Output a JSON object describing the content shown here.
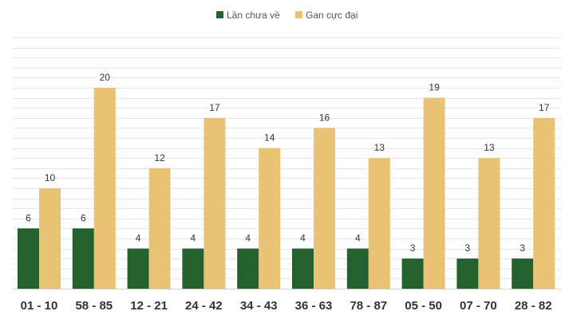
{
  "chart_data": {
    "type": "bar",
    "title": "",
    "xlabel": "",
    "ylabel": "",
    "categories": [
      "01 - 10",
      "58 - 85",
      "12 - 21",
      "24 - 42",
      "34 - 43",
      "36 - 63",
      "78 - 87",
      "05 - 50",
      "07 - 70",
      "28 - 82"
    ],
    "series": [
      {
        "name": "Lần chưa về",
        "color": "#24612f",
        "values": [
          6,
          6,
          4,
          4,
          4,
          4,
          4,
          3,
          3,
          3
        ]
      },
      {
        "name": "Gan cực đại",
        "color": "#e8c275",
        "values": [
          10,
          20,
          12,
          17,
          14,
          16,
          13,
          19,
          13,
          17
        ]
      }
    ],
    "ylim": [
      0,
      25
    ],
    "grid": true,
    "legend_position": "top-center",
    "colors": {
      "grid": "#e6e6e6",
      "axis": "#d0d0d0",
      "text": "#333333"
    }
  }
}
